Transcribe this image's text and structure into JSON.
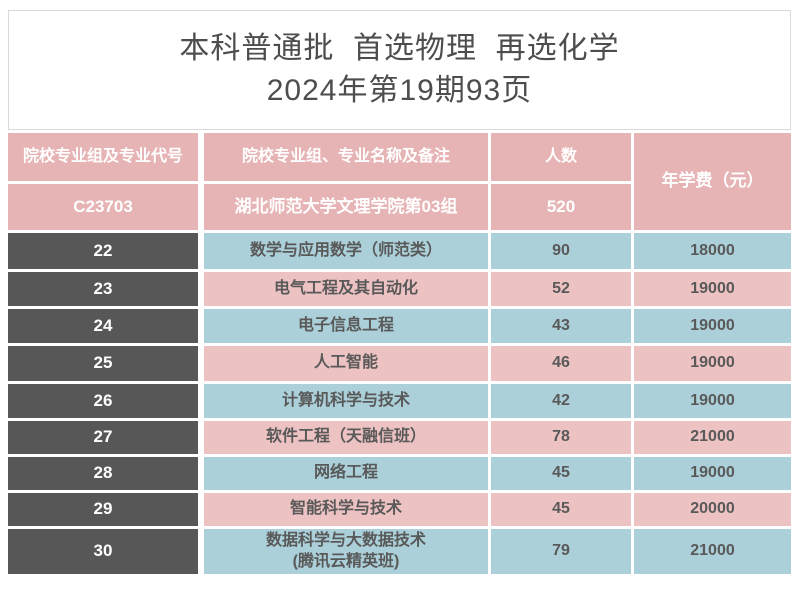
{
  "title": {
    "line1": "本科普通批  首选物理  再选化学",
    "line2": "2024年第19期93页"
  },
  "table": {
    "headers": {
      "group_code_col": "院校专业组及专业代号",
      "specialty_col": "院校专业组、专业名称及备注",
      "count_col": "人数",
      "fee_col": "年学费（元）"
    },
    "group": {
      "code": "C23703",
      "name": "湖北师范大学文理学院第03组",
      "count": "520"
    },
    "rows": [
      {
        "code": "22",
        "specialty": "数学与应用数学（师范类）",
        "count": "90",
        "fee": "18000"
      },
      {
        "code": "23",
        "specialty": "电气工程及其自动化",
        "count": "52",
        "fee": "19000"
      },
      {
        "code": "24",
        "specialty": "电子信息工程",
        "count": "43",
        "fee": "19000"
      },
      {
        "code": "25",
        "specialty": "人工智能",
        "count": "46",
        "fee": "19000"
      },
      {
        "code": "26",
        "specialty": "计算机科学与技术",
        "count": "42",
        "fee": "19000"
      },
      {
        "code": "27",
        "specialty": "软件工程（天融信班）",
        "count": "78",
        "fee": "21000"
      },
      {
        "code": "28",
        "specialty": "网络工程",
        "count": "45",
        "fee": "19000"
      },
      {
        "code": "29",
        "specialty": "智能科学与技术",
        "count": "45",
        "fee": "20000"
      },
      {
        "code": "30",
        "specialty": "数据科学与大数据技术\n(腾讯云精英班)",
        "count": "79",
        "fee": "21000"
      }
    ]
  },
  "colors": {
    "header_pink": "#e7b4b5",
    "row_pink": "#edc2c3",
    "row_blue": "#abd0d9",
    "code_dark": "#575757",
    "body_text": "#595959",
    "title_text": "#4d4d4d",
    "title_border": "#d9d9d9"
  }
}
